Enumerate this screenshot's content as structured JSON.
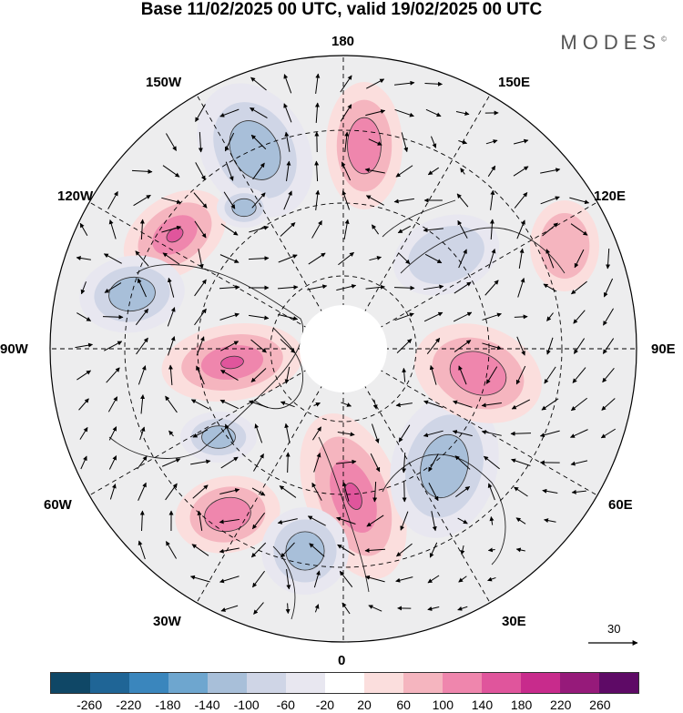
{
  "title": "Base 11/02/2025 00 UTC, valid 19/02/2025 00 UTC",
  "brand": "MODES",
  "brand_mark": "©",
  "longitude_labels": {
    "n180": "180",
    "w150": "150W",
    "e150": "150E",
    "w120": "120W",
    "e120": "120E",
    "w90": "90W",
    "e90": "90E",
    "w60": "60W",
    "e60": "60E",
    "w30": "30W",
    "e30": "30E",
    "s0": "0"
  },
  "vector_scale_label": "30",
  "colorbar": {
    "ticks": [
      "-260",
      "-220",
      "-180",
      "-140",
      "-100",
      "-60",
      "-20",
      "20",
      "60",
      "100",
      "140",
      "180",
      "220",
      "260"
    ],
    "colors": [
      "#0f4766",
      "#1f6596",
      "#3a86bd",
      "#6ea6cf",
      "#a8bfd9",
      "#cfd5e6",
      "#e8e7f0",
      "#ffffff",
      "#fbdedd",
      "#f5b5bf",
      "#ef86ad",
      "#e0559c",
      "#c82b8c",
      "#961a7a",
      "#5e0a66"
    ]
  },
  "anomalies": [
    {
      "sign": "pos",
      "level": 3
    },
    {
      "sign": "pos",
      "level": 2
    },
    {
      "sign": "neg",
      "level": 2
    },
    {
      "sign": "neg",
      "level": 2
    },
    {
      "sign": "neg",
      "level": 2
    },
    {
      "sign": "pos",
      "level": 3
    },
    {
      "sign": "pos",
      "level": 3
    },
    {
      "sign": "neg",
      "level": 1
    },
    {
      "sign": "neg",
      "level": 2
    },
    {
      "sign": "pos",
      "level": 2
    },
    {
      "sign": "pos",
      "level": 2
    },
    {
      "sign": "neg",
      "level": 2
    },
    {
      "sign": "neg",
      "level": 2
    },
    {
      "sign": "pos",
      "level": 1
    }
  ]
}
